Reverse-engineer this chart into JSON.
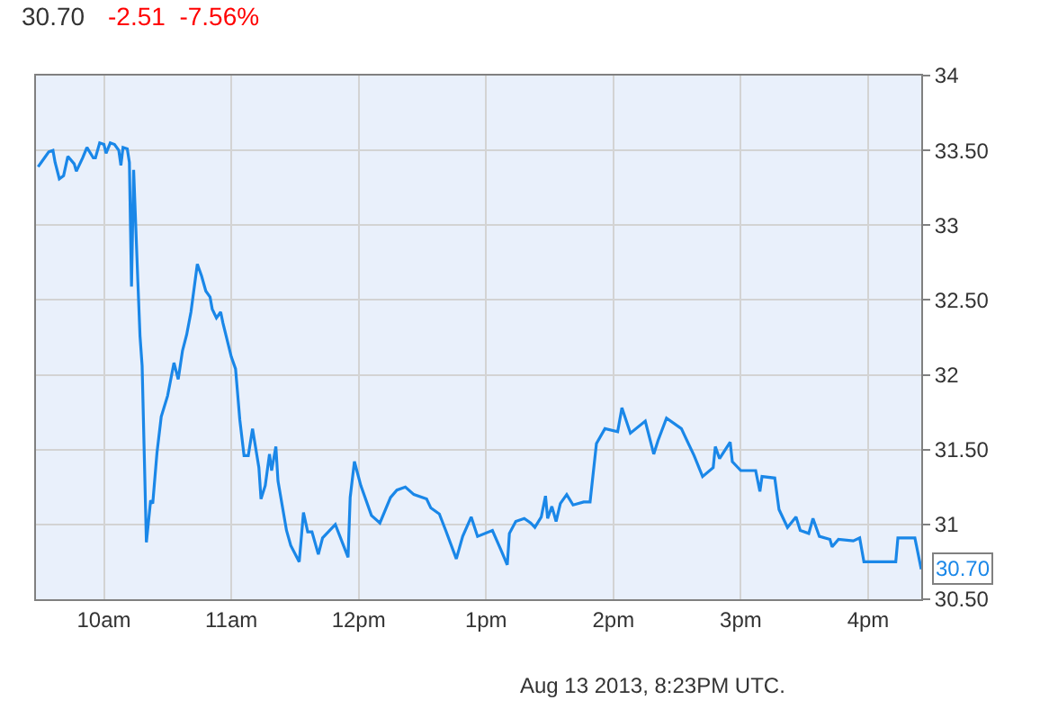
{
  "chart_data": {
    "type": "line",
    "title": "30.70",
    "subtitle": "-2.51  -7.56%",
    "x": [
      "2013-08-13T09:29",
      "2013-08-13T09:31",
      "2013-08-13T09:34",
      "2013-08-13T09:36",
      "2013-08-13T09:37",
      "2013-08-13T09:39",
      "2013-08-13T09:41",
      "2013-08-13T09:43",
      "2013-08-13T09:46",
      "2013-08-13T09:47",
      "2013-08-13T09:50",
      "2013-08-13T09:52",
      "2013-08-13T09:55",
      "2013-08-13T09:56",
      "2013-08-13T09:58",
      "2013-08-13T10:00",
      "2013-08-13T10:01",
      "2013-08-13T10:03",
      "2013-08-13T10:05",
      "2013-08-13T10:07",
      "2013-08-13T10:08",
      "2013-08-13T10:09",
      "2013-08-13T10:11",
      "2013-08-13T10:12",
      "2013-08-13T10:13",
      "2013-08-13T10:14",
      "2013-08-13T10:16",
      "2013-08-13T10:17",
      "2013-08-13T10:18",
      "2013-08-13T10:20",
      "2013-08-13T10:22",
      "2013-08-13T10:23",
      "2013-08-13T10:25",
      "2013-08-13T10:27",
      "2013-08-13T10:30",
      "2013-08-13T10:33",
      "2013-08-13T10:35",
      "2013-08-13T10:37",
      "2013-08-13T10:39",
      "2013-08-13T10:41",
      "2013-08-13T10:44",
      "2013-08-13T10:46",
      "2013-08-13T10:48",
      "2013-08-13T10:50",
      "2013-08-13T10:51",
      "2013-08-13T10:53",
      "2013-08-13T10:55",
      "2013-08-13T10:56",
      "2013-08-13T11:00",
      "2013-08-13T11:02",
      "2013-08-13T11:04",
      "2013-08-13T11:06",
      "2013-08-13T11:08",
      "2013-08-13T11:10",
      "2013-08-13T11:13",
      "2013-08-13T11:14",
      "2013-08-13T11:16",
      "2013-08-13T11:18",
      "2013-08-13T11:19",
      "2013-08-13T11:21",
      "2013-08-13T11:22",
      "2013-08-13T11:26",
      "2013-08-13T11:28",
      "2013-08-13T11:32",
      "2013-08-13T11:34",
      "2013-08-13T11:36",
      "2013-08-13T11:38",
      "2013-08-13T11:41",
      "2013-08-13T11:43",
      "2013-08-13T11:49",
      "2013-08-13T11:55",
      "2013-08-13T11:56",
      "2013-08-13T11:58",
      "2013-08-13T12:01",
      "2013-08-13T12:06",
      "2013-08-13T12:10",
      "2013-08-13T12:15",
      "2013-08-13T12:18",
      "2013-08-13T12:22",
      "2013-08-13T12:26",
      "2013-08-13T12:32",
      "2013-08-13T12:34",
      "2013-08-13T12:38",
      "2013-08-13T12:41",
      "2013-08-13T12:46",
      "2013-08-13T12:49",
      "2013-08-13T12:53",
      "2013-08-13T12:56",
      "2013-08-13T13:03",
      "2013-08-13T13:07",
      "2013-08-13T13:10",
      "2013-08-13T13:11",
      "2013-08-13T13:14",
      "2013-08-13T13:18",
      "2013-08-13T13:21",
      "2013-08-13T13:23",
      "2013-08-13T13:26",
      "2013-08-13T13:28",
      "2013-08-13T13:29",
      "2013-08-13T13:31",
      "2013-08-13T13:33",
      "2013-08-13T13:35",
      "2013-08-13T13:38",
      "2013-08-13T13:41",
      "2013-08-13T13:46",
      "2013-08-13T13:49",
      "2013-08-13T13:52",
      "2013-08-13T13:56",
      "2013-08-13T14:02",
      "2013-08-13T14:04",
      "2013-08-13T14:08",
      "2013-08-13T14:15",
      "2013-08-13T14:19",
      "2013-08-13T14:21",
      "2013-08-13T14:25",
      "2013-08-13T14:32",
      "2013-08-13T14:38",
      "2013-08-13T14:42",
      "2013-08-13T14:47",
      "2013-08-13T14:48",
      "2013-08-13T14:50",
      "2013-08-13T14:55",
      "2013-08-13T14:56",
      "2013-08-13T15:00",
      "2013-08-13T15:07",
      "2013-08-13T15:09",
      "2013-08-13T15:10",
      "2013-08-13T15:16",
      "2013-08-13T15:18",
      "2013-08-13T15:20",
      "2013-08-13T15:22",
      "2013-08-13T15:26",
      "2013-08-13T15:28",
      "2013-08-13T15:32",
      "2013-08-13T15:34",
      "2013-08-13T15:37",
      "2013-08-13T15:42",
      "2013-08-13T15:43",
      "2013-08-13T15:46",
      "2013-08-13T15:53",
      "2013-08-13T15:56",
      "2013-08-13T15:58",
      "2013-08-13T16:13",
      "2013-08-13T16:14",
      "2013-08-13T16:22",
      "2013-08-13T16:25"
    ],
    "series": [
      {
        "color": "#1a87e8",
        "values": [
          33.39,
          33.43,
          33.49,
          33.5,
          33.42,
          33.31,
          33.33,
          33.46,
          33.41,
          33.36,
          33.45,
          33.52,
          33.45,
          33.45,
          33.55,
          33.54,
          33.48,
          33.55,
          33.54,
          33.5,
          33.4,
          33.52,
          33.51,
          33.42,
          32.59,
          33.37,
          32.62,
          32.26,
          32.06,
          30.88,
          31.16,
          31.14,
          31.48,
          31.72,
          31.86,
          32.08,
          31.97,
          32.16,
          32.27,
          32.42,
          32.74,
          32.66,
          32.56,
          32.52,
          32.44,
          32.38,
          32.42,
          32.35,
          32.12,
          32.04,
          31.7,
          31.46,
          31.46,
          31.64,
          31.38,
          31.17,
          31.26,
          31.47,
          31.36,
          31.52,
          31.29,
          30.96,
          30.86,
          30.75,
          31.08,
          30.95,
          30.95,
          30.8,
          30.91,
          31.0,
          30.78,
          31.18,
          31.42,
          31.26,
          31.06,
          31.01,
          31.18,
          31.23,
          31.25,
          31.2,
          31.17,
          31.11,
          31.07,
          30.96,
          30.77,
          30.92,
          31.05,
          30.92,
          30.96,
          30.83,
          30.73,
          30.94,
          31.02,
          31.04,
          31.01,
          30.98,
          31.05,
          31.19,
          31.04,
          31.12,
          31.02,
          31.14,
          31.2,
          31.13,
          31.15,
          31.15,
          31.54,
          31.64,
          31.62,
          31.78,
          31.61,
          31.69,
          31.47,
          31.56,
          31.71,
          31.64,
          31.46,
          31.32,
          31.38,
          31.52,
          31.44,
          31.55,
          31.42,
          31.36,
          31.36,
          31.22,
          31.32,
          31.31,
          31.1,
          31.04,
          30.98,
          31.05,
          30.96,
          30.94,
          31.04,
          30.92,
          30.9,
          30.85,
          30.9,
          30.89,
          30.91,
          30.75,
          30.75,
          30.91,
          30.91,
          30.7
        ]
      }
    ],
    "xlim": [
      "2013-08-13T09:28",
      "2013-08-13T16:25"
    ],
    "xticks": [
      {
        "value": "2013-08-13T10:00",
        "label": "10am"
      },
      {
        "value": "2013-08-13T11:00",
        "label": "11am"
      },
      {
        "value": "2013-08-13T12:00",
        "label": "12pm"
      },
      {
        "value": "2013-08-13T13:00",
        "label": "1pm"
      },
      {
        "value": "2013-08-13T14:00",
        "label": "2pm"
      },
      {
        "value": "2013-08-13T15:00",
        "label": "3pm"
      },
      {
        "value": "2013-08-13T16:00",
        "label": "4pm"
      }
    ],
    "ylim": [
      30.5,
      34
    ],
    "yticks": [
      {
        "value": 30.5,
        "label": "30.50"
      },
      31,
      {
        "value": 31.5,
        "label": "31.50"
      },
      32,
      {
        "value": 32.5,
        "label": "32.50"
      },
      33,
      {
        "value": 33.5,
        "label": "33.50"
      },
      34
    ],
    "grid": true,
    "marker": "none",
    "line_style": "solid",
    "annotations": [
      {
        "text": "30.70",
        "x": "2013-08-13T16:25",
        "y": 30.7
      },
      "Aug 13 2013, 8:23PM UTC."
    ]
  }
}
